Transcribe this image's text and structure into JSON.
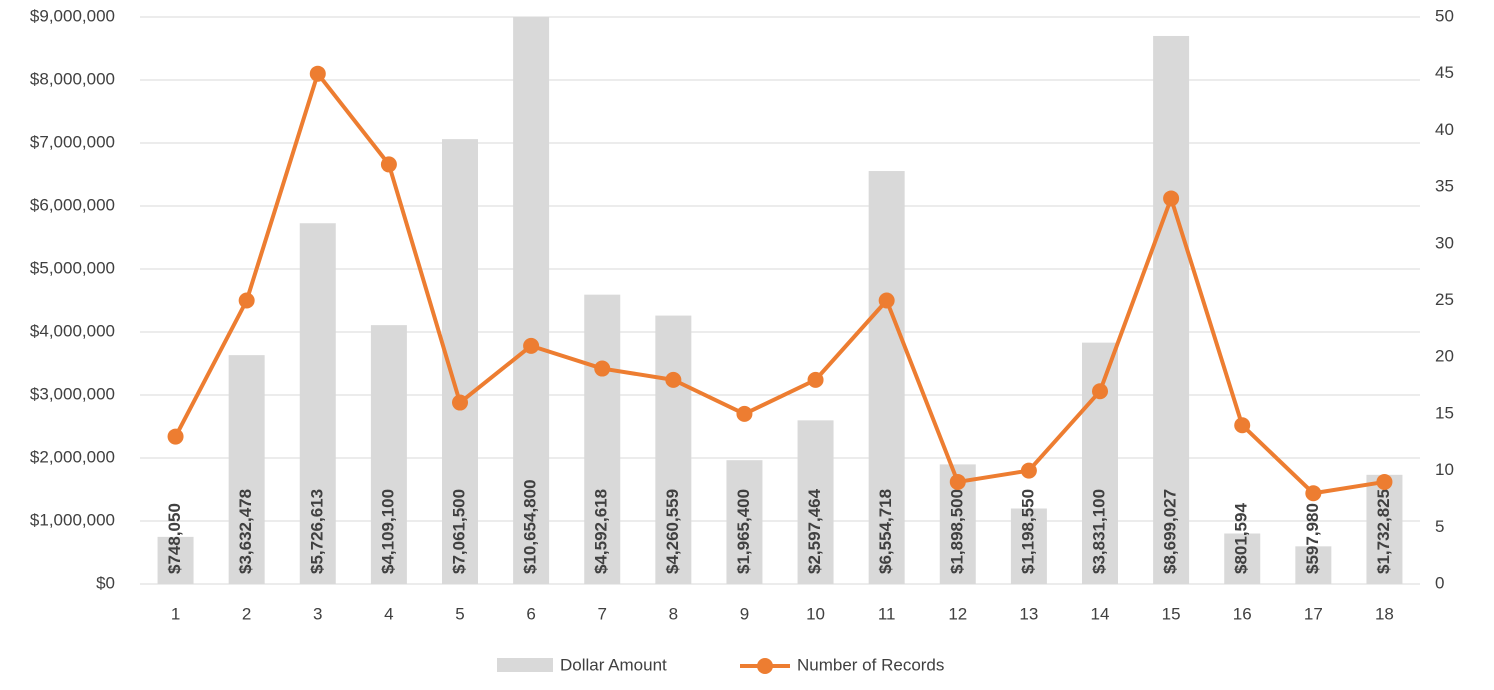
{
  "chart_data": {
    "type": "bar-line",
    "categories": [
      "1",
      "2",
      "3",
      "4",
      "5",
      "6",
      "7",
      "8",
      "9",
      "10",
      "11",
      "12",
      "13",
      "14",
      "15",
      "16",
      "17",
      "18"
    ],
    "series": [
      {
        "name": "Dollar Amount",
        "type": "bar",
        "color": "#d9d9d9",
        "values": [
          748050,
          3632478,
          5726613,
          4109100,
          7061500,
          10654800,
          4592618,
          4260559,
          1965400,
          2597464,
          6554718,
          1898500,
          1198550,
          3831100,
          8699027,
          801594,
          597980,
          1732825
        ],
        "value_labels": [
          "$748,050",
          "$3,632,478",
          "$5,726,613",
          "$4,109,100",
          "$7,061,500",
          "$10,654,800",
          "$4,592,618",
          "$4,260,559",
          "$1,965,400",
          "$2,597,464",
          "$6,554,718",
          "$1,898,500",
          "$1,198,550",
          "$3,831,100",
          "$8,699,027",
          "$801,594",
          "$597,980",
          "$1,732,825"
        ]
      },
      {
        "name": "Number of Records",
        "type": "line",
        "color": "#ed7d31",
        "axis": "y2",
        "values": [
          13,
          25,
          45,
          37,
          16,
          21,
          19,
          18,
          15,
          18,
          25,
          9,
          10,
          17,
          34,
          14,
          8,
          9
        ]
      }
    ],
    "ylim": [
      0,
      9000000
    ],
    "yticks": [
      {
        "value": 0,
        "label": "$0"
      },
      {
        "value": 1000000,
        "label": "$1,000,000"
      },
      {
        "value": 2000000,
        "label": "$2,000,000"
      },
      {
        "value": 3000000,
        "label": "$3,000,000"
      },
      {
        "value": 4000000,
        "label": "$4,000,000"
      },
      {
        "value": 5000000,
        "label": "$5,000,000"
      },
      {
        "value": 6000000,
        "label": "$6,000,000"
      },
      {
        "value": 7000000,
        "label": "$7,000,000"
      },
      {
        "value": 8000000,
        "label": "$8,000,000"
      },
      {
        "value": 9000000,
        "label": "$9,000,000"
      }
    ],
    "y2lim": [
      0,
      50
    ],
    "y2ticks": [
      0,
      5,
      10,
      15,
      20,
      25,
      30,
      35,
      40,
      45,
      50
    ],
    "grid": true,
    "legend": "bottom"
  }
}
